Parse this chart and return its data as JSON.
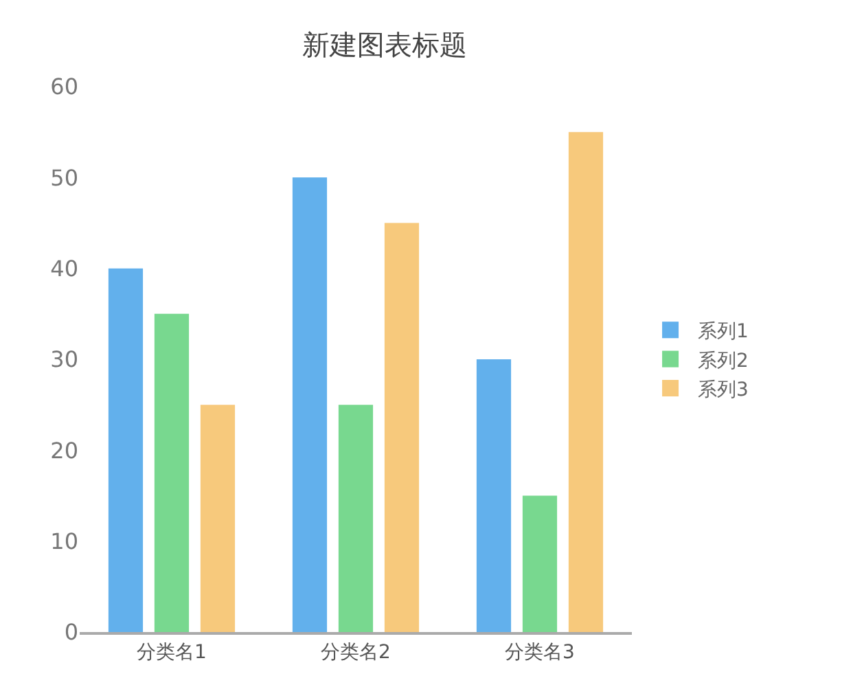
{
  "chart_data": {
    "type": "bar",
    "title": "新建图表标题",
    "categories": [
      "分类名1",
      "分类名2",
      "分类名3"
    ],
    "series": [
      {
        "name": "系列1",
        "color": "#62b0ec",
        "values": [
          40,
          50,
          30
        ]
      },
      {
        "name": "系列2",
        "color": "#78d88f",
        "values": [
          35,
          25,
          15
        ]
      },
      {
        "name": "系列3",
        "color": "#f7c97c",
        "values": [
          25,
          45,
          55
        ]
      }
    ],
    "ylim": [
      0,
      60
    ],
    "yticks": [
      0,
      10,
      20,
      30,
      40,
      50,
      60
    ],
    "grid": false,
    "legend": "right"
  }
}
